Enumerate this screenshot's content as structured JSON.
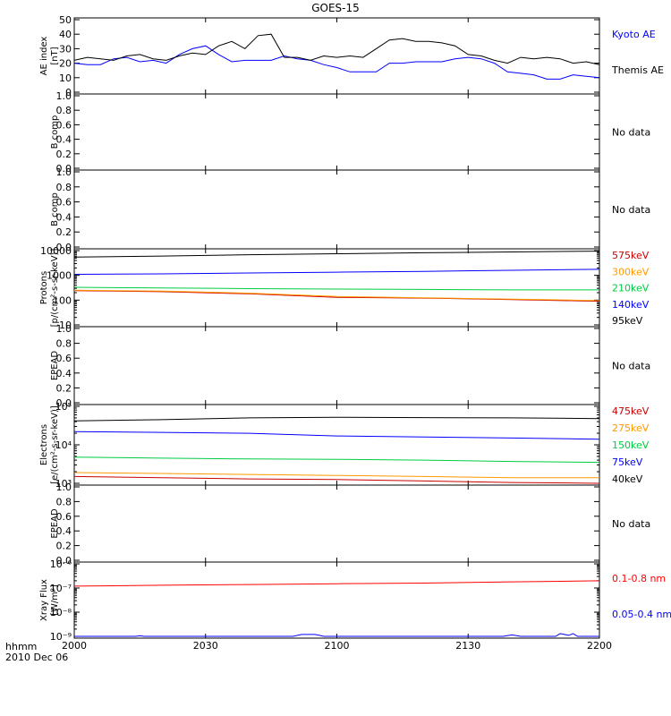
{
  "chart_data": {
    "title": "GOES-15",
    "time_axis": {
      "ticks": [
        "2000",
        "2030",
        "2100",
        "2130",
        "2200"
      ],
      "label_line1": "hhmm",
      "label_line2": "2010 Dec 06",
      "range_minutes": [
        0,
        120
      ]
    },
    "panels": [
      {
        "id": "ae",
        "type": "line",
        "ylabel": [
          "AE index",
          "[nT]"
        ],
        "scale": "linear",
        "ylim": [
          0,
          50
        ],
        "ticks": [
          0,
          10,
          20,
          30,
          40,
          50
        ],
        "tick_labels": [
          "0",
          "10",
          "20",
          "30",
          "40",
          "50"
        ],
        "series": [
          {
            "name": "Kyoto AE",
            "color": "#0000ff",
            "x": [
              0,
              3,
              6,
              9,
              12,
              15,
              18,
              21,
              24,
              27,
              30,
              33,
              36,
              39,
              42,
              45,
              48,
              51,
              54,
              57,
              60,
              63,
              66,
              69,
              72,
              75,
              78,
              81,
              84,
              87,
              90,
              93,
              96,
              99,
              102,
              105,
              108,
              111,
              114,
              117,
              120
            ],
            "y": [
              20,
              19,
              19,
              23,
              24,
              21,
              22,
              20,
              26,
              30,
              32,
              26,
              21,
              22,
              22,
              22,
              25,
              23,
              22,
              19,
              17,
              14,
              14,
              14,
              20,
              20,
              21,
              21,
              21,
              23,
              24,
              23,
              20,
              14,
              13,
              12,
              9,
              9,
              12,
              11,
              10
            ]
          },
          {
            "name": "Themis AE",
            "color": "#000000",
            "x": [
              0,
              3,
              6,
              9,
              12,
              15,
              18,
              21,
              24,
              27,
              30,
              33,
              36,
              39,
              42,
              45,
              48,
              51,
              54,
              57,
              60,
              63,
              66,
              69,
              72,
              75,
              78,
              81,
              84,
              87,
              90,
              93,
              96,
              99,
              102,
              105,
              108,
              111,
              114,
              117,
              120
            ],
            "y": [
              22,
              24,
              23,
              22,
              25,
              26,
              23,
              22,
              25,
              27,
              26,
              32,
              35,
              30,
              39,
              40,
              24,
              24,
              22,
              25,
              24,
              25,
              24,
              30,
              36,
              37,
              35,
              35,
              34,
              32,
              26,
              25,
              22,
              20,
              24,
              23,
              24,
              23,
              20,
              21,
              19
            ]
          }
        ]
      },
      {
        "id": "bcomp1",
        "type": "line",
        "ylabel": [
          "B comp"
        ],
        "scale": "linear",
        "ylim": [
          0,
          1
        ],
        "ticks": [
          0,
          0.2,
          0.4,
          0.6,
          0.8,
          1.0
        ],
        "tick_labels": [
          "0.0",
          "0.2",
          "0.4",
          "0.6",
          "0.8",
          "1.0"
        ],
        "series": [],
        "note": "No data"
      },
      {
        "id": "bcomp2",
        "type": "line",
        "ylabel": [
          "B comp"
        ],
        "scale": "linear",
        "ylim": [
          0,
          1
        ],
        "ticks": [
          0,
          0.2,
          0.4,
          0.6,
          0.8,
          1.0
        ],
        "tick_labels": [
          "0.0",
          "0.2",
          "0.4",
          "0.6",
          "0.8",
          "1.0"
        ],
        "series": [],
        "note": "No data"
      },
      {
        "id": "protons",
        "type": "line",
        "ylabel": [
          "Protons",
          "[p/(cm²-s-sr-keV)]"
        ],
        "scale": "log",
        "ylim": [
          10,
          10000
        ],
        "ticks": [
          10,
          100,
          1000,
          10000
        ],
        "tick_labels": [
          "10",
          "100",
          "1000",
          "10000"
        ],
        "series": [
          {
            "name": "575keV",
            "color": "#cc0000",
            "x": [
              0,
              20,
              40,
              60,
              80,
              100,
              120
            ],
            "y": [
              240,
              220,
              180,
              130,
              120,
              105,
              90
            ]
          },
          {
            "name": "300keV",
            "color": "#ff9900",
            "x": [
              0,
              20,
              40,
              60,
              80,
              100,
              120
            ],
            "y": [
              250,
              230,
              190,
              140,
              125,
              110,
              95
            ]
          },
          {
            "name": "210keV",
            "color": "#00cc44",
            "x": [
              0,
              20,
              40,
              60,
              80,
              100,
              120
            ],
            "y": [
              330,
              310,
              290,
              280,
              270,
              260,
              260
            ]
          },
          {
            "name": "140keV",
            "color": "#0000ff",
            "x": [
              0,
              20,
              40,
              60,
              80,
              100,
              120
            ],
            "y": [
              1100,
              1150,
              1250,
              1350,
              1450,
              1600,
              1750
            ]
          },
          {
            "name": "95keV",
            "color": "#000000",
            "x": [
              0,
              20,
              40,
              60,
              80,
              100,
              120
            ],
            "y": [
              5500,
              6000,
              6800,
              7500,
              8200,
              8800,
              9500
            ]
          }
        ]
      },
      {
        "id": "epead1",
        "type": "line",
        "ylabel": [
          "EPEAD"
        ],
        "scale": "linear",
        "ylim": [
          0,
          1
        ],
        "ticks": [
          0,
          0.2,
          0.4,
          0.6,
          0.8,
          1.0
        ],
        "tick_labels": [
          "0.0",
          "0.2",
          "0.4",
          "0.6",
          "0.8",
          "1.0"
        ],
        "series": [],
        "note": "No data"
      },
      {
        "id": "electrons",
        "type": "line",
        "ylabel": [
          "Electrons",
          "[e/(cm²-s-sr-keV)]"
        ],
        "scale": "log",
        "ylim": [
          1000,
          100000
        ],
        "ticks": [
          1000,
          10000,
          100000
        ],
        "tick_labels": [
          "10³",
          "10⁴",
          "10⁵"
        ],
        "series": [
          {
            "name": "475keV",
            "color": "#cc0000",
            "x": [
              0,
              20,
              40,
              60,
              80,
              100,
              120
            ],
            "y": [
              1500,
              1400,
              1300,
              1250,
              1150,
              1050,
              1000
            ]
          },
          {
            "name": "275keV",
            "color": "#ff9900",
            "x": [
              0,
              20,
              40,
              60,
              80,
              100,
              120
            ],
            "y": [
              1900,
              1800,
              1700,
              1600,
              1500,
              1400,
              1400
            ]
          },
          {
            "name": "150keV",
            "color": "#00cc44",
            "x": [
              0,
              20,
              40,
              60,
              80,
              100,
              120
            ],
            "y": [
              4800,
              4500,
              4300,
              4200,
              4000,
              3700,
              3500
            ]
          },
          {
            "name": "75keV",
            "color": "#0000ff",
            "x": [
              0,
              20,
              40,
              60,
              80,
              100,
              120
            ],
            "y": [
              22000,
              21000,
              20000,
              17000,
              16000,
              15000,
              14000
            ]
          },
          {
            "name": "40keV",
            "color": "#000000",
            "x": [
              0,
              20,
              40,
              60,
              80,
              100,
              120
            ],
            "y": [
              42000,
              45000,
              50000,
              52000,
              51000,
              50000,
              48000
            ]
          }
        ]
      },
      {
        "id": "epead2",
        "type": "line",
        "ylabel": [
          "EPEAD"
        ],
        "scale": "linear",
        "ylim": [
          0,
          1
        ],
        "ticks": [
          0,
          0.2,
          0.4,
          0.6,
          0.8,
          1.0
        ],
        "tick_labels": [
          "0.0",
          "0.2",
          "0.4",
          "0.6",
          "0.8",
          "1.0"
        ],
        "series": [],
        "note": "No data"
      },
      {
        "id": "xray",
        "type": "line",
        "ylabel": [
          "Xray Flux",
          "[W/m²]"
        ],
        "scale": "log",
        "ylim": [
          1e-09,
          1e-06
        ],
        "ticks": [
          1e-09,
          1e-08,
          1e-07,
          1e-06
        ],
        "tick_labels": [
          "10⁻⁹",
          "10⁻⁸",
          "10⁻⁷",
          "10⁻⁶"
        ],
        "series": [
          {
            "name": "0.1-0.8 nm",
            "color": "#ff0000",
            "x": [
              0,
              20,
              40,
              60,
              80,
              100,
              120
            ],
            "y": [
              1.2e-07,
              1.3e-07,
              1.4e-07,
              1.5e-07,
              1.6e-07,
              1.8e-07,
              2e-07
            ]
          },
          {
            "name": "0.05-0.4 nm",
            "color": "#0000ff",
            "x": [
              0,
              14,
              15,
              16,
              35,
              50,
              51,
              52,
              55,
              56,
              57,
              70,
              85,
              98,
              100,
              102,
              110,
              111,
              112,
              113,
              114,
              115,
              120
            ],
            "y": [
              1e-09,
              1e-09,
              1.05e-09,
              1e-09,
              1e-09,
              1e-09,
              1.1e-09,
              1.2e-09,
              1.2e-09,
              1.1e-09,
              1e-09,
              1e-09,
              1e-09,
              1e-09,
              1.15e-09,
              1e-09,
              1e-09,
              1.3e-09,
              1.2e-09,
              1.1e-09,
              1.3e-09,
              1e-09,
              1e-09
            ]
          }
        ]
      }
    ]
  }
}
